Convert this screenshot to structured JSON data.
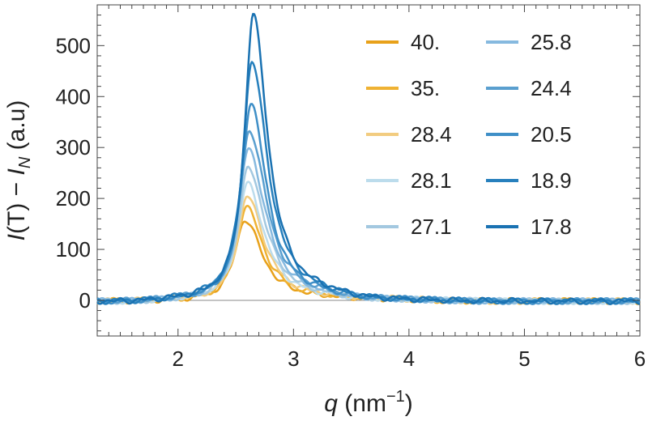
{
  "chart_data": {
    "type": "line",
    "title": "",
    "xlabel": "q (nm⁻¹)",
    "xlabel_parts": {
      "var": "q",
      "unit_open": " (nm",
      "unit_exp": "−1",
      "unit_close": ")"
    },
    "ylabel": "I(T) − I_N (a.u)",
    "ylabel_parts": {
      "lhs": "I",
      "lhs_arg": "(T) − ",
      "rhs": "I",
      "rhs_sub": "N",
      "unit": " (a.u)"
    },
    "xlim": [
      1.3,
      6.0
    ],
    "ylim": [
      -70,
      580
    ],
    "xticks": [
      2,
      3,
      4,
      5,
      6
    ],
    "yticks": [
      0,
      100,
      200,
      300,
      400,
      500
    ],
    "zero_line": true,
    "grid": false,
    "legend_position": "top-right",
    "series": [
      {
        "name": "40.",
        "color": "#e8a11a",
        "peak_q": 2.58,
        "peak": 160,
        "width": 0.14
      },
      {
        "name": "35.",
        "color": "#efb233",
        "peak_q": 2.59,
        "peak": 185,
        "width": 0.14
      },
      {
        "name": "28.4",
        "color": "#f2cc80",
        "peak_q": 2.6,
        "peak": 205,
        "width": 0.14
      },
      {
        "name": "28.1",
        "color": "#bcdcec",
        "peak_q": 2.6,
        "peak": 230,
        "width": 0.14
      },
      {
        "name": "27.1",
        "color": "#a3c8e0",
        "peak_q": 2.61,
        "peak": 262,
        "width": 0.14
      },
      {
        "name": "25.8",
        "color": "#86b9df",
        "peak_q": 2.61,
        "peak": 300,
        "width": 0.14
      },
      {
        "name": "24.4",
        "color": "#5a9fcf",
        "peak_q": 2.62,
        "peak": 335,
        "width": 0.14
      },
      {
        "name": "20.5",
        "color": "#3f8fc7",
        "peak_q": 2.63,
        "peak": 390,
        "width": 0.13
      },
      {
        "name": "18.9",
        "color": "#2780bd",
        "peak_q": 2.64,
        "peak": 470,
        "width": 0.13
      },
      {
        "name": "17.8",
        "color": "#1a72b2",
        "peak_q": 2.65,
        "peak": 562,
        "width": 0.12
      }
    ]
  }
}
